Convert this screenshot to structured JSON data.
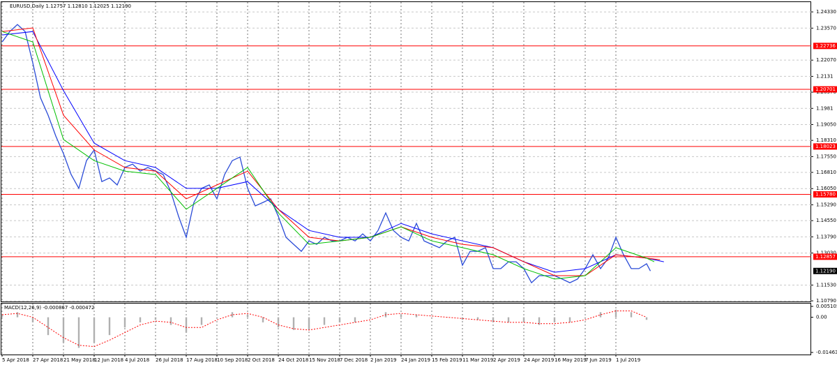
{
  "chart_data": [
    {
      "type": "line",
      "title": "EURUSD,Daily  1.12757 1.12810 1.12025 1.12190",
      "ylim": [
        1.1076,
        1.2479
      ],
      "yticks": [
        {
          "value": 1.2433,
          "label": "1.24330"
        },
        {
          "value": 1.2357,
          "label": "1.23570"
        },
        {
          "value": 1.2207,
          "label": "1.22070"
        },
        1.2131,
        {
          "value": 1.2057,
          "label": "1.20570"
        },
        1.1981,
        {
          "value": 1.1905,
          "label": "1.19050"
        },
        {
          "value": 1.1831,
          "label": "1.18310"
        },
        {
          "value": 1.1755,
          "label": "1.17550"
        },
        {
          "value": 1.1681,
          "label": "1.16810"
        },
        {
          "value": 1.1605,
          "label": "1.16050"
        },
        {
          "value": 1.1529,
          "label": "1.15290"
        },
        {
          "value": 1.1455,
          "label": "1.14550"
        },
        {
          "value": 1.1379,
          "label": "1.13790"
        },
        {
          "value": 1.1303,
          "label": "1.13030"
        },
        {
          "value": 1.1153,
          "label": "1.11530"
        },
        {
          "value": 1.1079,
          "label": "1.10790"
        }
      ],
      "xlim": [
        -1,
        420
      ],
      "xticks": [
        {
          "value": 0,
          "label": "5 Apr 2018"
        },
        {
          "value": 16,
          "label": "27 Apr 2018"
        },
        {
          "value": 32,
          "label": "21 May 2018"
        },
        {
          "value": 48,
          "label": "12 Jun 2018"
        },
        {
          "value": 64,
          "label": "4 Jul 2018"
        },
        {
          "value": 80,
          "label": "26 Jul 2018"
        },
        {
          "value": 96,
          "label": "17 Aug 2018"
        },
        {
          "value": 112,
          "label": "10 Sep 2018"
        },
        {
          "value": 128,
          "label": "2 Oct 2018"
        },
        {
          "value": 144,
          "label": "24 Oct 2018"
        },
        {
          "value": 160,
          "label": "15 Nov 2018"
        },
        {
          "value": 176,
          "label": "7 Dec 2018"
        },
        {
          "value": 192,
          "label": "2 Jan 2019"
        },
        {
          "value": 208,
          "label": "24 Jan 2019"
        },
        {
          "value": 224,
          "label": "15 Feb 2019"
        },
        {
          "value": 240,
          "label": "11 Mar 2019"
        },
        {
          "value": 256,
          "label": "2 Apr 2019"
        },
        {
          "value": 272,
          "label": "24 Apr 2019"
        },
        {
          "value": 288,
          "label": "16 May 2019"
        },
        {
          "value": 304,
          "label": "7 Jun 2019"
        },
        {
          "value": 320,
          "label": "1 Jul 2019"
        }
      ],
      "grid": true,
      "levels": [
        1.22736,
        1.20701,
        1.18023,
        {
          "value": 1.1578,
          "label": "1.15780"
        },
        1.12857
      ],
      "level_color": "#ff0000",
      "last_price": {
        "value": 1.1219,
        "label": "1.12190"
      },
      "series": [
        {
          "color": "#2a4bd7",
          "x": [
            0,
            4,
            8,
            12,
            16,
            20,
            24,
            28,
            32,
            36,
            40,
            44,
            48,
            52,
            56,
            60,
            64,
            68,
            72,
            76,
            80,
            84,
            88,
            92,
            96,
            100,
            104,
            108,
            112,
            116,
            120,
            124,
            128,
            132,
            136,
            140,
            144,
            148,
            152,
            156,
            160,
            164,
            168,
            172,
            176,
            180,
            184,
            188,
            192,
            196,
            200,
            204,
            208,
            212,
            216,
            220,
            224,
            228,
            232,
            236,
            240,
            244,
            248,
            252,
            256,
            260,
            264,
            268,
            272,
            276,
            280,
            284,
            288,
            292,
            296,
            300,
            304,
            308,
            312,
            316,
            320,
            324,
            328,
            332,
            336,
            338
          ],
          "values": [
            1.2292,
            1.2341,
            1.2374,
            1.2341,
            1.2194,
            1.2031,
            1.1949,
            1.1851,
            1.1769,
            1.1671,
            1.1606,
            1.1736,
            1.1786,
            1.1638,
            1.1655,
            1.1622,
            1.1704,
            1.172,
            1.1687,
            1.1704,
            1.1687,
            1.1671,
            1.1589,
            1.1475,
            1.1377,
            1.154,
            1.1606,
            1.1622,
            1.1557,
            1.1671,
            1.1736,
            1.1753,
            1.1606,
            1.1524,
            1.154,
            1.1557,
            1.1475,
            1.1377,
            1.1344,
            1.1311,
            1.136,
            1.1344,
            1.1377,
            1.136,
            1.136,
            1.1377,
            1.136,
            1.1393,
            1.136,
            1.1409,
            1.1491,
            1.1409,
            1.1377,
            1.136,
            1.1442,
            1.136,
            1.1344,
            1.1328,
            1.136,
            1.1377,
            1.1246,
            1.1311,
            1.1311,
            1.1328,
            1.123,
            1.123,
            1.1262,
            1.1262,
            1.123,
            1.1164,
            1.1197,
            1.1197,
            1.1197,
            1.1181,
            1.1164,
            1.1181,
            1.123,
            1.1295,
            1.123,
            1.1279,
            1.1377,
            1.1295,
            1.123,
            1.123,
            1.1253,
            1.1219
          ]
        },
        {
          "color": "#0000ff",
          "x": [
            0,
            16,
            32,
            48,
            64,
            80,
            96,
            112,
            128,
            144,
            160,
            176,
            192,
            208,
            224,
            240,
            256,
            272,
            288,
            304,
            320,
            336,
            345
          ],
          "values": [
            1.2325,
            1.2341,
            1.2064,
            1.1818,
            1.1736,
            1.1704,
            1.1606,
            1.1606,
            1.1638,
            1.1508,
            1.1409,
            1.1377,
            1.1377,
            1.1442,
            1.1393,
            1.136,
            1.1328,
            1.1262,
            1.1213,
            1.123,
            1.1295,
            1.1279,
            1.1262
          ]
        },
        {
          "color": "#ff0000",
          "x": [
            0,
            16,
            32,
            48,
            64,
            80,
            96,
            112,
            128,
            144,
            160,
            176,
            192,
            208,
            224,
            240,
            256,
            272,
            288,
            304,
            320,
            336,
            343
          ],
          "values": [
            1.2341,
            1.2358,
            1.1949,
            1.1786,
            1.1704,
            1.1687,
            1.1557,
            1.1622,
            1.1687,
            1.1508,
            1.1377,
            1.136,
            1.1377,
            1.1426,
            1.1377,
            1.1344,
            1.1328,
            1.1262,
            1.1197,
            1.1197,
            1.1295,
            1.1279,
            1.1272
          ]
        },
        {
          "color": "#00c000",
          "x": [
            0,
            16,
            32,
            48,
            64,
            80,
            96,
            112,
            128,
            144,
            160,
            176,
            192,
            208,
            224,
            240,
            256,
            272,
            288,
            304,
            320,
            336,
            340
          ],
          "values": [
            1.2341,
            1.2292,
            1.1835,
            1.1736,
            1.1687,
            1.1671,
            1.1508,
            1.1606,
            1.1704,
            1.1491,
            1.1344,
            1.136,
            1.1377,
            1.1426,
            1.136,
            1.1328,
            1.1295,
            1.123,
            1.1181,
            1.1197,
            1.1328,
            1.1279,
            1.1262
          ]
        }
      ]
    },
    {
      "type": "bar",
      "title": "MACD(12,26,9) -0.000867 -0.000472",
      "ylim": [
        -0.014636,
        0.005105
      ],
      "yticks": [
        0.005105,
        {
          "value": 0,
          "label": "0.00"
        },
        -0.014636
      ],
      "color": "#b0b0b0",
      "x": [
        0,
        8,
        16,
        24,
        32,
        40,
        48,
        56,
        64,
        72,
        80,
        88,
        96,
        104,
        112,
        120,
        128,
        136,
        144,
        152,
        160,
        168,
        176,
        184,
        192,
        200,
        208,
        216,
        224,
        232,
        240,
        248,
        256,
        264,
        272,
        280,
        288,
        296,
        304,
        312,
        320,
        328,
        336
      ],
      "values": [
        0.001,
        0.002,
        -0.002,
        -0.007,
        -0.01,
        -0.012,
        -0.01,
        -0.007,
        -0.004,
        -0.002,
        -0.001,
        -0.003,
        -0.006,
        -0.003,
        0.0,
        0.002,
        0.001,
        -0.002,
        -0.004,
        -0.005,
        -0.005,
        -0.003,
        -0.002,
        -0.002,
        0.0,
        0.002,
        0.001,
        0.001,
        0.0,
        0.0,
        -0.001,
        -0.001,
        -0.002,
        -0.002,
        -0.002,
        -0.003,
        -0.002,
        -0.002,
        0.0,
        0.002,
        0.003,
        0.002,
        -0.001
      ],
      "signal": {
        "color": "#ff0000",
        "values": [
          0.001,
          0.0015,
          0.0,
          -0.004,
          -0.008,
          -0.011,
          -0.0115,
          -0.009,
          -0.006,
          -0.003,
          -0.0015,
          -0.002,
          -0.004,
          -0.004,
          -0.001,
          0.001,
          0.0015,
          0.0,
          -0.003,
          -0.0045,
          -0.005,
          -0.004,
          -0.003,
          -0.002,
          -0.001,
          0.001,
          0.0015,
          0.001,
          0.0005,
          0.0,
          -0.0005,
          -0.001,
          -0.0015,
          -0.002,
          -0.002,
          -0.0025,
          -0.0025,
          -0.002,
          -0.001,
          0.001,
          0.0025,
          0.0025,
          0.0
        ]
      }
    }
  ]
}
